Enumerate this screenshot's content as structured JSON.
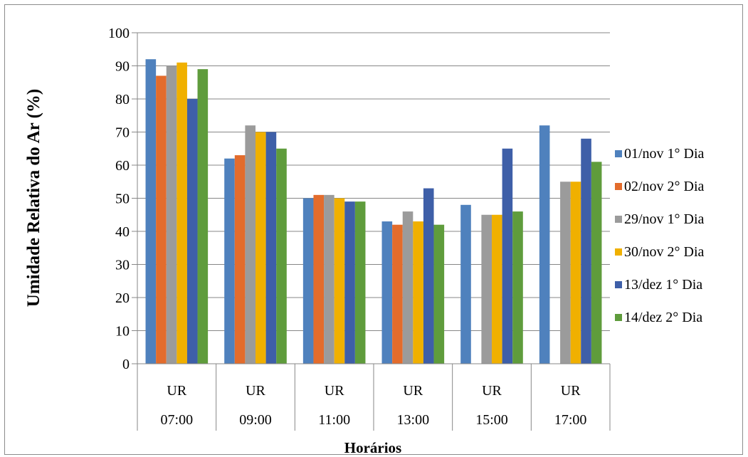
{
  "chart_data": {
    "type": "bar",
    "ylabel": "Umidade Relativa do Ar (%)",
    "xlabel": "Horários",
    "ylim": [
      0,
      100
    ],
    "yticks": [
      0,
      10,
      20,
      30,
      40,
      50,
      60,
      70,
      80,
      90,
      100
    ],
    "grid": true,
    "legend_position": "right",
    "categories": [
      {
        "group": "UR",
        "label": "07:00"
      },
      {
        "group": "UR",
        "label": "09:00"
      },
      {
        "group": "UR",
        "label": "11:00"
      },
      {
        "group": "UR",
        "label": "13:00"
      },
      {
        "group": "UR",
        "label": "15:00"
      },
      {
        "group": "UR",
        "label": "17:00"
      }
    ],
    "series": [
      {
        "name": "01/nov 1° Dia",
        "color": "#4f81bd",
        "values": [
          92,
          62,
          50,
          43,
          48,
          72
        ]
      },
      {
        "name": "02/nov 2° Dia",
        "color": "#e36c2c",
        "values": [
          87,
          63,
          51,
          42,
          null,
          null
        ]
      },
      {
        "name": "29/nov 1° Dia",
        "color": "#9b9b9b",
        "values": [
          90,
          72,
          51,
          46,
          45,
          55
        ]
      },
      {
        "name": "30/nov 2° Dia",
        "color": "#f0b000",
        "values": [
          91,
          70,
          50,
          43,
          45,
          55
        ]
      },
      {
        "name": "13/dez 1° Dia",
        "color": "#3e5fa8",
        "values": [
          80,
          70,
          49,
          53,
          65,
          68
        ]
      },
      {
        "name": "14/dez 2° Dia",
        "color": "#5f9c3c",
        "values": [
          89,
          65,
          49,
          42,
          46,
          61
        ]
      }
    ]
  }
}
